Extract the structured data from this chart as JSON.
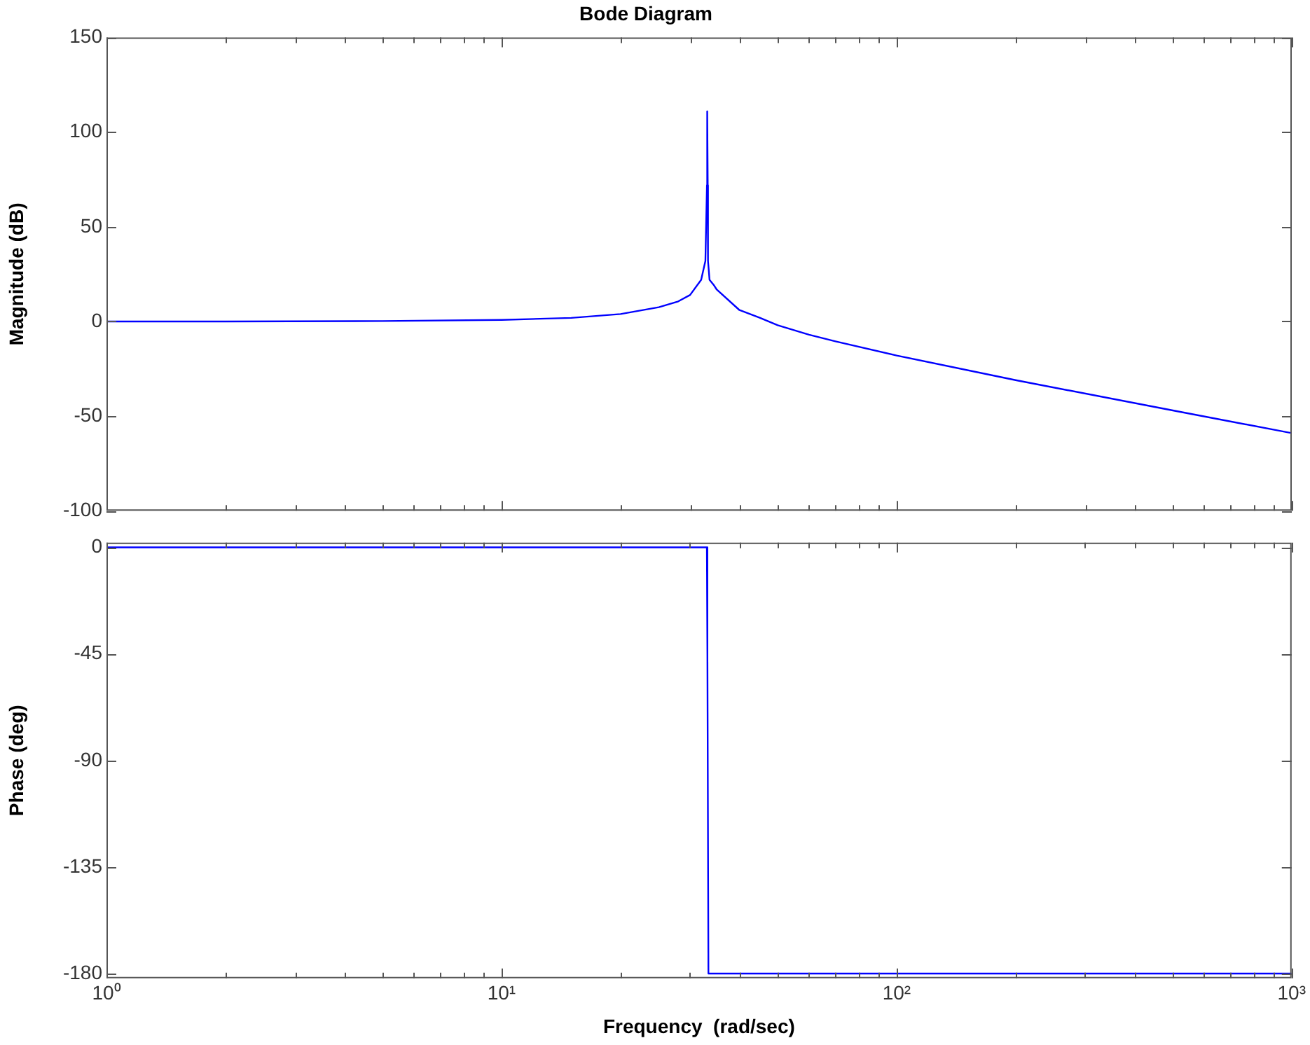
{
  "chart_data": [
    {
      "type": "line",
      "title": "Bode Diagram",
      "ylabel": "Magnitude (dB)",
      "log": "x",
      "grid": false,
      "tick_labels": "y",
      "line_style": "solid",
      "marker": "none",
      "xlim": [
        1,
        1000
      ],
      "xticks": [
        {
          "value": 1,
          "label": null
        },
        {
          "value": 2,
          "label": null
        },
        {
          "value": 3,
          "label": null
        },
        {
          "value": 4,
          "label": null
        },
        {
          "value": 5,
          "label": null
        },
        {
          "value": 6,
          "label": null
        },
        {
          "value": 7,
          "label": null
        },
        {
          "value": 8,
          "label": null
        },
        {
          "value": 9,
          "label": null
        },
        {
          "value": 10,
          "label": null
        },
        {
          "value": 20,
          "label": null
        },
        {
          "value": 30,
          "label": null
        },
        {
          "value": 40,
          "label": null
        },
        {
          "value": 50,
          "label": null
        },
        {
          "value": 60,
          "label": null
        },
        {
          "value": 70,
          "label": null
        },
        {
          "value": 80,
          "label": null
        },
        {
          "value": 90,
          "label": null
        },
        {
          "value": 100,
          "label": null
        },
        {
          "value": 200,
          "label": null
        },
        {
          "value": 300,
          "label": null
        },
        {
          "value": 400,
          "label": null
        },
        {
          "value": 500,
          "label": null
        },
        {
          "value": 600,
          "label": null
        },
        {
          "value": 700,
          "label": null
        },
        {
          "value": 800,
          "label": null
        },
        {
          "value": 900,
          "label": null
        },
        {
          "value": 1000,
          "label": null
        }
      ],
      "ylim": [
        -100,
        150
      ],
      "yticks": [
        -100,
        -50,
        0,
        50,
        100,
        150
      ],
      "series": [
        {
          "color": "#0000ff",
          "x": [
            1,
            2,
            5,
            10,
            15,
            20,
            25,
            28,
            30,
            32,
            32.8,
            33.1,
            33.15,
            33.25,
            33.3,
            33.6,
            34.5,
            35,
            40,
            45,
            50,
            60,
            70,
            100,
            200,
            500,
            1000
          ],
          "values": [
            0,
            0,
            0.2,
            0.8,
            1.9,
            3.9,
            7.5,
            10.6,
            14,
            22,
            32,
            72,
            111,
            72,
            32,
            22,
            19,
            17,
            6,
            2,
            -2,
            -7,
            -10.5,
            -18,
            -31,
            -47,
            -59
          ]
        }
      ]
    },
    {
      "type": "line",
      "ylabel": "Phase (deg)",
      "xlabel": "Frequency  (rad/sec)",
      "log": "x",
      "grid": false,
      "line_style": "solid",
      "marker": "none",
      "xlim": [
        1,
        1000
      ],
      "xticks": [
        {
          "value": 1,
          "label": "10⁰"
        },
        {
          "value": 2,
          "label": null
        },
        {
          "value": 3,
          "label": null
        },
        {
          "value": 4,
          "label": null
        },
        {
          "value": 5,
          "label": null
        },
        {
          "value": 6,
          "label": null
        },
        {
          "value": 7,
          "label": null
        },
        {
          "value": 8,
          "label": null
        },
        {
          "value": 9,
          "label": null
        },
        {
          "value": 10,
          "label": "10¹"
        },
        {
          "value": 20,
          "label": null
        },
        {
          "value": 30,
          "label": null
        },
        {
          "value": 40,
          "label": null
        },
        {
          "value": 50,
          "label": null
        },
        {
          "value": 60,
          "label": null
        },
        {
          "value": 70,
          "label": null
        },
        {
          "value": 80,
          "label": null
        },
        {
          "value": 90,
          "label": null
        },
        {
          "value": 100,
          "label": "10²"
        },
        {
          "value": 200,
          "label": null
        },
        {
          "value": 300,
          "label": null
        },
        {
          "value": 400,
          "label": null
        },
        {
          "value": 500,
          "label": null
        },
        {
          "value": 600,
          "label": null
        },
        {
          "value": 700,
          "label": null
        },
        {
          "value": 800,
          "label": null
        },
        {
          "value": 900,
          "label": null
        },
        {
          "value": 1000,
          "label": "10³"
        }
      ],
      "ylim": [
        -182,
        2
      ],
      "yticks": [
        -180,
        -135,
        -90,
        -45,
        0
      ],
      "series": [
        {
          "color": "#0000ff",
          "x": [
            1,
            33.1,
            33.2,
            33.4,
            1000
          ],
          "values": [
            0,
            0,
            -45,
            -180,
            -180
          ]
        }
      ]
    }
  ]
}
